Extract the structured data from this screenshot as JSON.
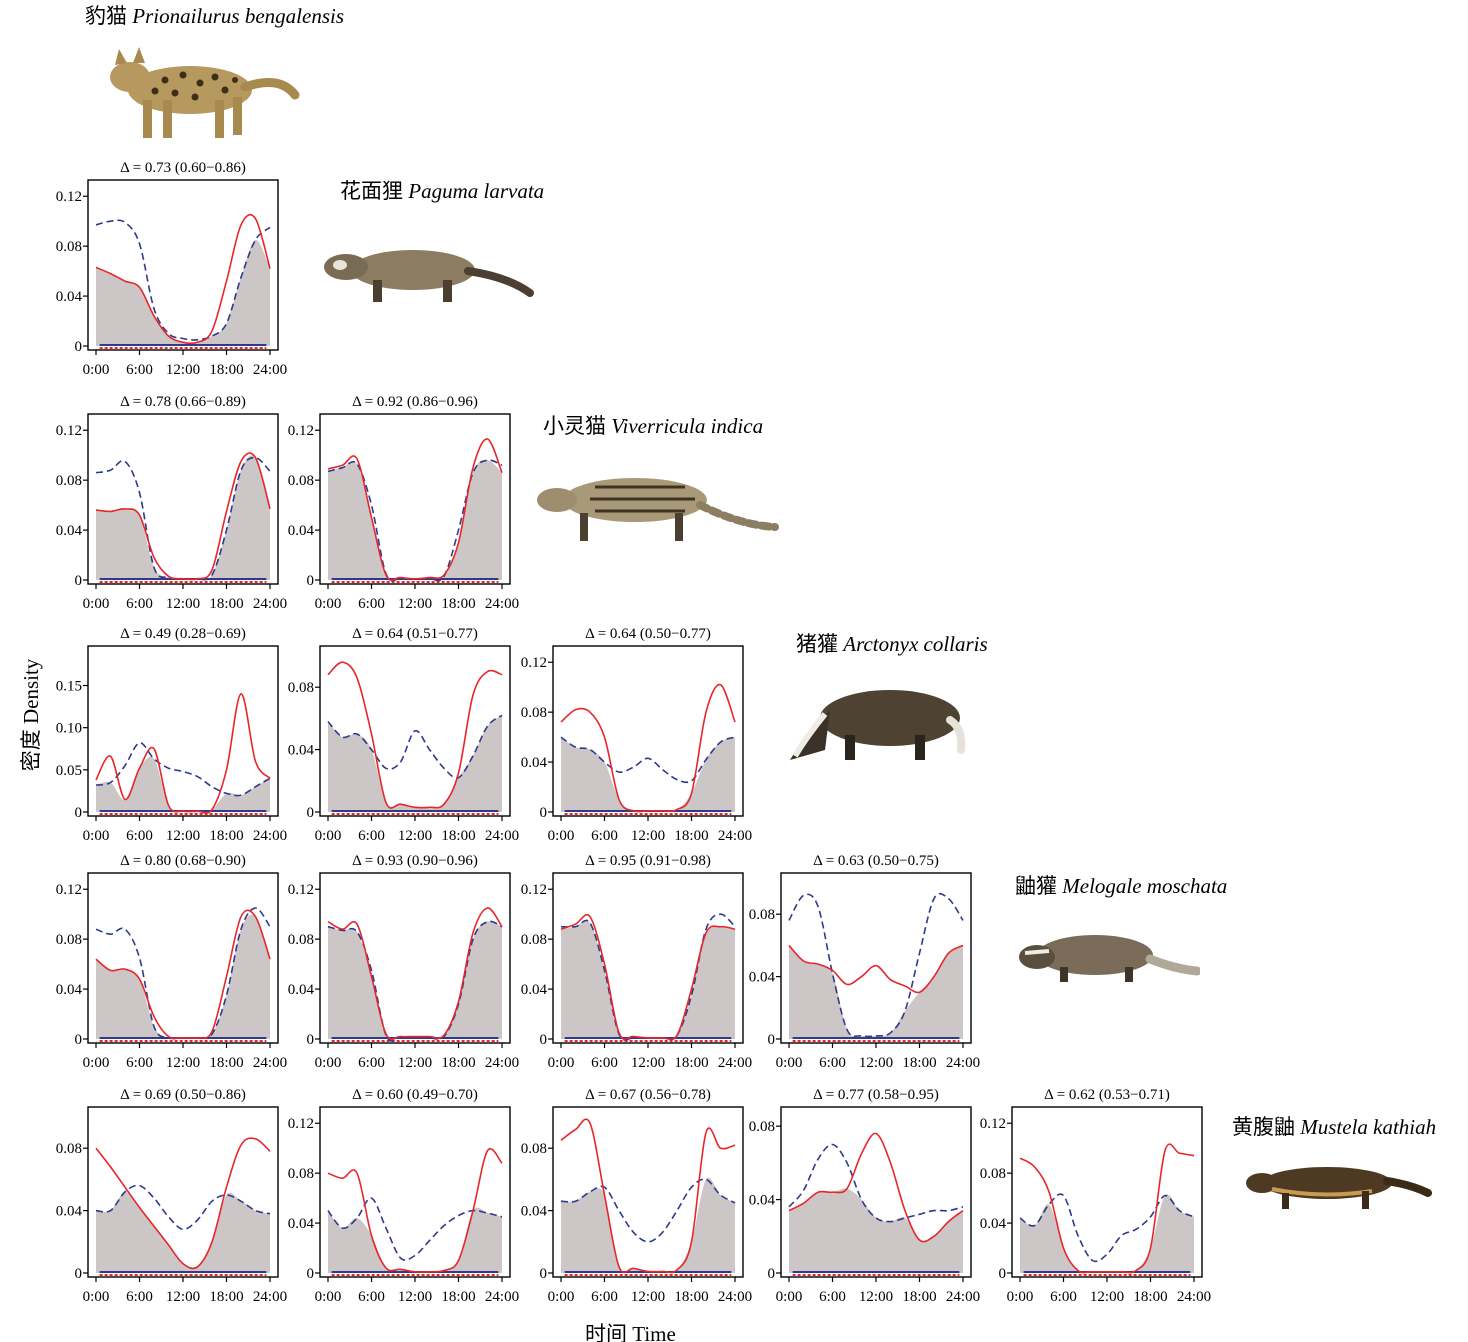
{
  "figure": {
    "y_axis_label": "密度 Density",
    "x_axis_label": "时间 Time"
  },
  "species": [
    {
      "cn": "豹猫",
      "latin": "Prionailurus bengalensis"
    },
    {
      "cn": "花面狸",
      "latin": "Paguma larvata"
    },
    {
      "cn": "小灵猫",
      "latin": "Viverricula indica"
    },
    {
      "cn": "猪獾",
      "latin": "Arctonyx collaris"
    },
    {
      "cn": "鼬獾",
      "latin": "Melogale moschata"
    },
    {
      "cn": "黄腹鼬",
      "latin": "Mustela kathiah"
    }
  ],
  "colors": {
    "solid": "#e8262a",
    "dashed": "#2e3a8c",
    "overlap": "#ccc6c6"
  },
  "chart_data": [
    {
      "type": "area",
      "row": 0,
      "col": 0,
      "title": "Δ = 0.73 (0.60−0.86)",
      "x_ticks": [
        "0:00",
        "6:00",
        "12:00",
        "18:00",
        "24:00"
      ],
      "x": [
        0,
        2,
        4,
        6,
        8,
        10,
        12,
        14,
        16,
        18,
        20,
        22,
        24
      ],
      "ylim": [
        0,
        0.125
      ],
      "y_ticks": [
        "0",
        "0.04",
        "0.08",
        "0.12"
      ],
      "y_tick_values": [
        0,
        0.04,
        0.08,
        0.12
      ],
      "solid": [
        0.063,
        0.058,
        0.052,
        0.047,
        0.024,
        0.008,
        0.003,
        0.003,
        0.012,
        0.052,
        0.097,
        0.102,
        0.062
      ],
      "dashed": [
        0.097,
        0.1,
        0.099,
        0.082,
        0.03,
        0.01,
        0.006,
        0.005,
        0.008,
        0.018,
        0.055,
        0.085,
        0.095
      ]
    },
    {
      "type": "area",
      "row": 1,
      "col": 0,
      "title": "Δ = 0.78 (0.66−0.89)",
      "x_ticks": [
        "0:00",
        "6:00",
        "12:00",
        "18:00",
        "24:00"
      ],
      "x": [
        0,
        2,
        4,
        6,
        8,
        10,
        12,
        14,
        16,
        18,
        20,
        22,
        24
      ],
      "ylim": [
        0,
        0.125
      ],
      "y_ticks": [
        "0",
        "0.04",
        "0.08",
        "0.12"
      ],
      "y_tick_values": [
        0,
        0.04,
        0.08,
        0.12
      ],
      "solid": [
        0.056,
        0.055,
        0.057,
        0.052,
        0.018,
        0.003,
        0.001,
        0.001,
        0.008,
        0.055,
        0.095,
        0.098,
        0.057
      ],
      "dashed": [
        0.086,
        0.088,
        0.095,
        0.07,
        0.01,
        0.002,
        0.001,
        0.001,
        0.004,
        0.04,
        0.088,
        0.098,
        0.087
      ]
    },
    {
      "type": "area",
      "row": 1,
      "col": 1,
      "title": "Δ = 0.92  (0.86−0.96)",
      "x_ticks": [
        "0:00",
        "6:00",
        "12:00",
        "18:00",
        "24:00"
      ],
      "x": [
        0,
        2,
        4,
        6,
        8,
        10,
        12,
        14,
        16,
        18,
        20,
        22,
        24
      ],
      "ylim": [
        0,
        0.125
      ],
      "y_ticks": [
        "0",
        "0.04",
        "0.08",
        "0.12"
      ],
      "y_tick_values": [
        0,
        0.04,
        0.08,
        0.12
      ],
      "solid": [
        0.089,
        0.092,
        0.097,
        0.05,
        0.004,
        0.002,
        0.001,
        0.002,
        0.004,
        0.03,
        0.09,
        0.113,
        0.086
      ],
      "dashed": [
        0.087,
        0.09,
        0.093,
        0.06,
        0.005,
        0.001,
        0.001,
        0.001,
        0.003,
        0.04,
        0.086,
        0.096,
        0.092
      ]
    },
    {
      "type": "area",
      "row": 2,
      "col": 0,
      "title": "Δ = 0.49 (0.28−0.69)",
      "x_ticks": [
        "0:00",
        "6:00",
        "12:00",
        "18:00",
        "24:00"
      ],
      "x": [
        0,
        2,
        4,
        6,
        8,
        10,
        12,
        14,
        16,
        18,
        20,
        22,
        24
      ],
      "ylim": [
        0,
        0.185
      ],
      "y_ticks": [
        "0",
        "0.05",
        "0.10",
        "0.15"
      ],
      "y_tick_values": [
        0,
        0.05,
        0.1,
        0.15
      ],
      "solid": [
        0.038,
        0.066,
        0.015,
        0.052,
        0.075,
        0.008,
        0.001,
        0.001,
        0.003,
        0.05,
        0.14,
        0.06,
        0.04
      ],
      "dashed": [
        0.032,
        0.035,
        0.055,
        0.082,
        0.063,
        0.052,
        0.048,
        0.042,
        0.03,
        0.022,
        0.02,
        0.03,
        0.04
      ]
    },
    {
      "type": "area",
      "row": 2,
      "col": 1,
      "title": "Δ = 0.64 (0.51−0.77)",
      "x_ticks": [
        "0:00",
        "6:00",
        "12:00",
        "18:00",
        "24:00"
      ],
      "x": [
        0,
        2,
        4,
        6,
        8,
        10,
        12,
        14,
        16,
        18,
        20,
        22,
        24
      ],
      "ylim": [
        0,
        0.1
      ],
      "y_ticks": [
        "0",
        "0.04",
        "0.08"
      ],
      "y_tick_values": [
        0,
        0.04,
        0.08
      ],
      "solid": [
        0.088,
        0.096,
        0.086,
        0.05,
        0.006,
        0.005,
        0.003,
        0.003,
        0.005,
        0.025,
        0.075,
        0.09,
        0.088
      ],
      "dashed": [
        0.058,
        0.048,
        0.05,
        0.04,
        0.028,
        0.032,
        0.052,
        0.04,
        0.028,
        0.022,
        0.036,
        0.055,
        0.062
      ]
    },
    {
      "type": "area",
      "row": 2,
      "col": 2,
      "title": "Δ = 0.64 (0.50−0.77)",
      "x_ticks": [
        "0:00",
        "6:00",
        "12:00",
        "18:00",
        "24:00"
      ],
      "x": [
        0,
        2,
        4,
        6,
        8,
        10,
        12,
        14,
        16,
        18,
        20,
        22,
        24
      ],
      "ylim": [
        0,
        0.125
      ],
      "y_ticks": [
        "0",
        "0.04",
        "0.08",
        "0.12"
      ],
      "y_tick_values": [
        0,
        0.04,
        0.08,
        0.12
      ],
      "solid": [
        0.072,
        0.082,
        0.08,
        0.06,
        0.01,
        0.001,
        0.001,
        0.001,
        0.002,
        0.015,
        0.08,
        0.102,
        0.072
      ],
      "dashed": [
        0.06,
        0.052,
        0.05,
        0.04,
        0.032,
        0.036,
        0.043,
        0.034,
        0.026,
        0.025,
        0.042,
        0.056,
        0.06
      ]
    },
    {
      "type": "area",
      "row": 3,
      "col": 0,
      "title": "Δ = 0.80 (0.68−0.90)",
      "x_ticks": [
        "0:00",
        "6:00",
        "12:00",
        "18:00",
        "24:00"
      ],
      "x": [
        0,
        2,
        4,
        6,
        8,
        10,
        12,
        14,
        16,
        18,
        20,
        22,
        24
      ],
      "ylim": [
        0,
        0.125
      ],
      "y_ticks": [
        "0",
        "0.04",
        "0.08",
        "0.12"
      ],
      "y_tick_values": [
        0,
        0.04,
        0.08,
        0.12
      ],
      "solid": [
        0.064,
        0.055,
        0.056,
        0.048,
        0.018,
        0.002,
        0.001,
        0.001,
        0.006,
        0.05,
        0.098,
        0.098,
        0.064
      ],
      "dashed": [
        0.088,
        0.084,
        0.088,
        0.065,
        0.01,
        0.001,
        0.001,
        0.001,
        0.004,
        0.035,
        0.088,
        0.105,
        0.09
      ]
    },
    {
      "type": "area",
      "row": 3,
      "col": 1,
      "title": "Δ = 0.93 (0.90−0.96)",
      "x_ticks": [
        "0:00",
        "6:00",
        "12:00",
        "18:00",
        "24:00"
      ],
      "x": [
        0,
        2,
        4,
        6,
        8,
        10,
        12,
        14,
        16,
        18,
        20,
        22,
        24
      ],
      "ylim": [
        0,
        0.125
      ],
      "y_ticks": [
        "0",
        "0.04",
        "0.08",
        "0.12"
      ],
      "y_tick_values": [
        0,
        0.04,
        0.08,
        0.12
      ],
      "solid": [
        0.094,
        0.088,
        0.092,
        0.05,
        0.004,
        0.002,
        0.002,
        0.002,
        0.003,
        0.03,
        0.085,
        0.105,
        0.09
      ],
      "dashed": [
        0.09,
        0.087,
        0.086,
        0.055,
        0.003,
        0.001,
        0.001,
        0.001,
        0.002,
        0.028,
        0.08,
        0.094,
        0.09
      ]
    },
    {
      "type": "area",
      "row": 3,
      "col": 2,
      "title": "Δ = 0.95 (0.91−0.98)",
      "x_ticks": [
        "0:00",
        "6:00",
        "12:00",
        "18:00",
        "24:00"
      ],
      "x": [
        0,
        2,
        4,
        6,
        8,
        10,
        12,
        14,
        16,
        18,
        20,
        22,
        24
      ],
      "ylim": [
        0,
        0.125
      ],
      "y_ticks": [
        "0",
        "0.04",
        "0.08",
        "0.12"
      ],
      "y_tick_values": [
        0,
        0.04,
        0.08,
        0.12
      ],
      "solid": [
        0.088,
        0.092,
        0.098,
        0.06,
        0.005,
        0.002,
        0.001,
        0.001,
        0.003,
        0.04,
        0.085,
        0.09,
        0.088
      ],
      "dashed": [
        0.09,
        0.09,
        0.093,
        0.055,
        0.004,
        0.001,
        0.001,
        0.001,
        0.003,
        0.035,
        0.088,
        0.1,
        0.09
      ]
    },
    {
      "type": "area",
      "row": 3,
      "col": 3,
      "title": "Δ = 0.63 (0.50−0.75)",
      "x_ticks": [
        "0:00",
        "6:00",
        "12:00",
        "18:00",
        "24:00"
      ],
      "x": [
        0,
        2,
        4,
        6,
        8,
        10,
        12,
        14,
        16,
        18,
        20,
        22,
        24
      ],
      "ylim": [
        0,
        0.1
      ],
      "y_ticks": [
        "0",
        "0.04",
        "0.08"
      ],
      "y_tick_values": [
        0,
        0.04,
        0.08
      ],
      "solid": [
        0.06,
        0.05,
        0.048,
        0.044,
        0.035,
        0.04,
        0.047,
        0.038,
        0.034,
        0.03,
        0.04,
        0.055,
        0.06
      ],
      "dashed": [
        0.076,
        0.092,
        0.085,
        0.042,
        0.006,
        0.002,
        0.002,
        0.004,
        0.018,
        0.055,
        0.09,
        0.09,
        0.076
      ]
    },
    {
      "type": "area",
      "row": 4,
      "col": 0,
      "title": "Δ = 0.69 (0.50−0.86)",
      "x_ticks": [
        "0:00",
        "6:00",
        "12:00",
        "18:00",
        "24:00"
      ],
      "x": [
        0,
        2,
        4,
        6,
        8,
        10,
        12,
        14,
        16,
        18,
        20,
        22,
        24
      ],
      "ylim": [
        0,
        0.1
      ],
      "y_ticks": [
        "0",
        "0.04",
        "0.08"
      ],
      "y_tick_values": [
        0,
        0.04,
        0.08
      ],
      "solid": [
        0.08,
        0.068,
        0.055,
        0.042,
        0.03,
        0.018,
        0.006,
        0.004,
        0.02,
        0.055,
        0.082,
        0.086,
        0.078
      ],
      "dashed": [
        0.04,
        0.04,
        0.052,
        0.056,
        0.048,
        0.036,
        0.028,
        0.034,
        0.046,
        0.05,
        0.046,
        0.04,
        0.038
      ]
    },
    {
      "type": "area",
      "row": 4,
      "col": 1,
      "title": "Δ = 0.60 (0.49−0.70)",
      "x_ticks": [
        "0:00",
        "6:00",
        "12:00",
        "18:00",
        "24:00"
      ],
      "x": [
        0,
        2,
        4,
        6,
        8,
        10,
        12,
        14,
        16,
        18,
        20,
        22,
        24
      ],
      "ylim": [
        0,
        0.125
      ],
      "y_ticks": [
        "0",
        "0.04",
        "0.08",
        "0.12"
      ],
      "y_tick_values": [
        0,
        0.04,
        0.08,
        0.12
      ],
      "solid": [
        0.08,
        0.076,
        0.08,
        0.03,
        0.004,
        0.003,
        0.001,
        0.001,
        0.002,
        0.01,
        0.05,
        0.098,
        0.088
      ],
      "dashed": [
        0.05,
        0.036,
        0.044,
        0.06,
        0.036,
        0.012,
        0.014,
        0.026,
        0.038,
        0.046,
        0.05,
        0.048,
        0.045
      ]
    },
    {
      "type": "area",
      "row": 4,
      "col": 2,
      "title": "Δ = 0.67 (0.56−0.78)",
      "x_ticks": [
        "0:00",
        "6:00",
        "12:00",
        "18:00",
        "24:00"
      ],
      "x": [
        0,
        2,
        4,
        6,
        8,
        10,
        12,
        14,
        16,
        18,
        20,
        22,
        24
      ],
      "ylim": [
        0,
        0.1
      ],
      "y_ticks": [
        "0",
        "0.04",
        "0.08"
      ],
      "y_tick_values": [
        0,
        0.04,
        0.08
      ],
      "solid": [
        0.085,
        0.092,
        0.096,
        0.05,
        0.004,
        0.003,
        0.001,
        0.001,
        0.002,
        0.02,
        0.09,
        0.08,
        0.082
      ],
      "dashed": [
        0.046,
        0.046,
        0.052,
        0.055,
        0.04,
        0.026,
        0.02,
        0.026,
        0.04,
        0.055,
        0.06,
        0.05,
        0.045
      ]
    },
    {
      "type": "area",
      "row": 4,
      "col": 3,
      "title": "Δ = 0.77 (0.58−0.95)",
      "x_ticks": [
        "0:00",
        "6:00",
        "12:00",
        "18:00",
        "24:00"
      ],
      "x": [
        0,
        2,
        4,
        6,
        8,
        10,
        12,
        14,
        16,
        18,
        20,
        22,
        24
      ],
      "ylim": [
        0,
        0.085
      ],
      "y_ticks": [
        "0",
        "0.04",
        "0.08"
      ],
      "y_tick_values": [
        0,
        0.04,
        0.08
      ],
      "solid": [
        0.034,
        0.038,
        0.044,
        0.044,
        0.046,
        0.065,
        0.076,
        0.06,
        0.034,
        0.018,
        0.02,
        0.028,
        0.034
      ],
      "dashed": [
        0.036,
        0.045,
        0.062,
        0.07,
        0.06,
        0.04,
        0.03,
        0.028,
        0.03,
        0.032,
        0.034,
        0.034,
        0.036
      ]
    },
    {
      "type": "area",
      "row": 4,
      "col": 4,
      "title": "Δ = 0.62 (0.53−0.71)",
      "x_ticks": [
        "0:00",
        "6:00",
        "12:00",
        "18:00",
        "24:00"
      ],
      "x": [
        0,
        2,
        4,
        6,
        8,
        10,
        12,
        14,
        16,
        18,
        20,
        22,
        24
      ],
      "ylim": [
        0,
        0.125
      ],
      "y_ticks": [
        "0",
        "0.04",
        "0.08",
        "0.12"
      ],
      "y_tick_values": [
        0,
        0.04,
        0.08,
        0.12
      ],
      "solid": [
        0.092,
        0.085,
        0.065,
        0.02,
        0.002,
        0.001,
        0.001,
        0.001,
        0.002,
        0.02,
        0.098,
        0.096,
        0.094
      ],
      "dashed": [
        0.044,
        0.038,
        0.055,
        0.062,
        0.03,
        0.01,
        0.015,
        0.03,
        0.035,
        0.045,
        0.062,
        0.05,
        0.045
      ]
    }
  ]
}
